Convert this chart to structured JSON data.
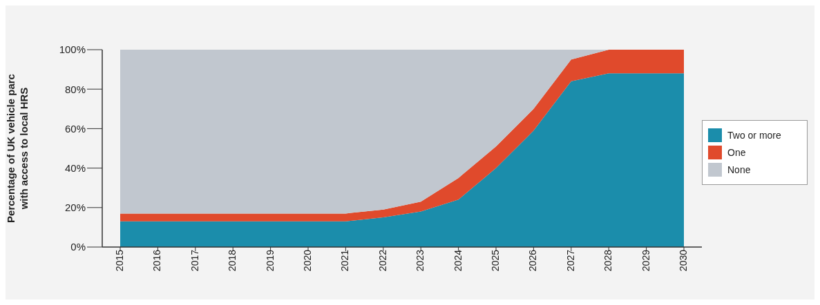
{
  "chart_data": {
    "type": "area",
    "stacked": true,
    "ylabel": "Percentage of UK vehicle parc\nwith access to local HRS",
    "categories": [
      "2015",
      "2016",
      "2017",
      "2018",
      "2019",
      "2020",
      "2021",
      "2022",
      "2023",
      "2024",
      "2025",
      "2026",
      "2027",
      "2028",
      "2029",
      "2030"
    ],
    "series": [
      {
        "name": "Two or more",
        "color": "#1b8dab",
        "values": [
          13,
          13,
          13,
          13,
          13,
          13,
          13,
          15,
          18,
          24,
          40,
          59,
          84,
          88,
          88,
          88
        ]
      },
      {
        "name": "One",
        "color": "#e04a2c",
        "values": [
          4,
          4,
          4,
          4,
          4,
          4,
          4,
          4,
          5,
          11,
          11,
          11,
          11,
          12,
          12,
          12
        ]
      },
      {
        "name": "None",
        "color": "#c1c7cf",
        "values": [
          83,
          83,
          83,
          83,
          83,
          83,
          83,
          81,
          77,
          65,
          49,
          30,
          5,
          0,
          0,
          0
        ]
      }
    ],
    "ylim": [
      0,
      100
    ],
    "yticks": [
      {
        "value": 0,
        "label": "0%"
      },
      {
        "value": 20,
        "label": "20%"
      },
      {
        "value": 40,
        "label": "40%"
      },
      {
        "value": 60,
        "label": "60%"
      },
      {
        "value": 80,
        "label": "80%"
      },
      {
        "value": 100,
        "label": "100%"
      }
    ],
    "grid": false,
    "legend": "right"
  }
}
